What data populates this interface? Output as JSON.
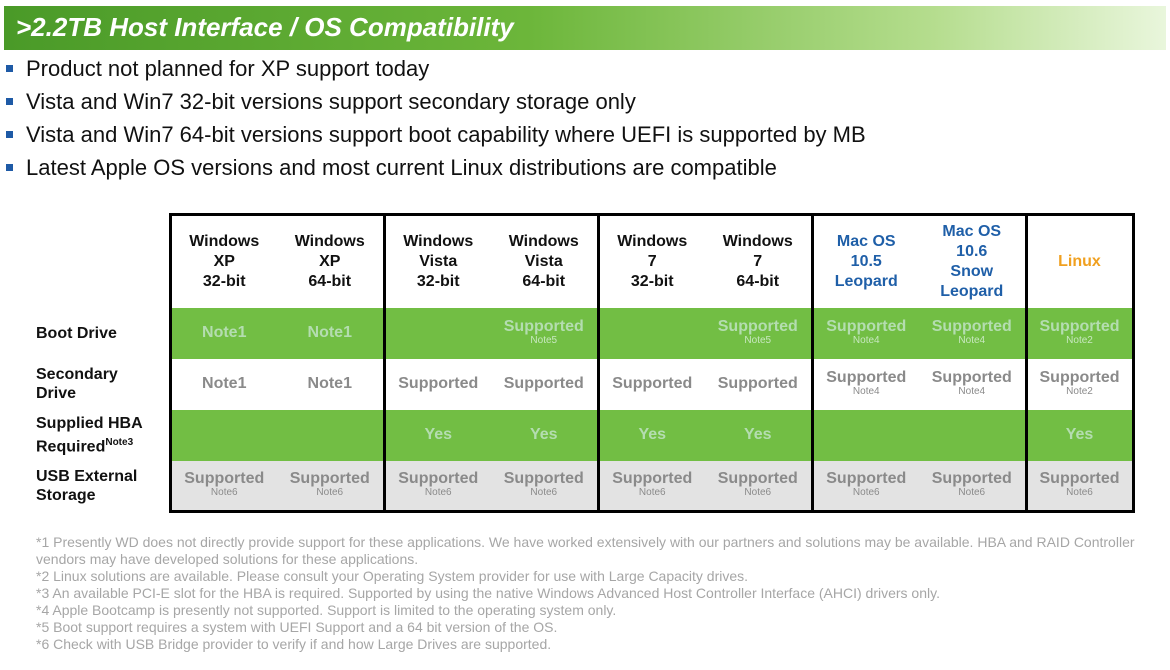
{
  "title": ">2.2TB Host Interface / OS Compatibility",
  "bullets": [
    "Product not planned for XP support today",
    "Vista and Win7 32-bit versions support secondary storage only",
    "Vista and Win7 64-bit versions support boot capability where UEFI is supported by MB",
    "Latest Apple OS versions and most current Linux distributions are compatible"
  ],
  "table": {
    "columns": [
      {
        "l1": "Windows",
        "l2": "XP",
        "l3": "32-bit"
      },
      {
        "l1": "Windows",
        "l2": "XP",
        "l3": "64-bit"
      },
      {
        "l1": "Windows",
        "l2": "Vista",
        "l3": "32-bit"
      },
      {
        "l1": "Windows",
        "l2": "Vista",
        "l3": "64-bit"
      },
      {
        "l1": "Windows",
        "l2": "7",
        "l3": "32-bit"
      },
      {
        "l1": "Windows",
        "l2": "7",
        "l3": "64-bit"
      },
      {
        "l1": "Mac OS",
        "l2": "10.5",
        "l3": "Leopard"
      },
      {
        "l1": "Mac OS",
        "l2": "10.6",
        "l3": "Snow",
        "l4": "Leopard"
      },
      {
        "l1": "Linux"
      }
    ],
    "rows": [
      {
        "label1": "Boot Drive",
        "cells": [
          {
            "v": "Note1"
          },
          {
            "v": "Note1"
          },
          {
            "v": ""
          },
          {
            "v": "Supported",
            "n": "Note5"
          },
          {
            "v": ""
          },
          {
            "v": "Supported",
            "n": "Note5"
          },
          {
            "v": "Supported",
            "n": "Note4"
          },
          {
            "v": "Supported",
            "n": "Note4"
          },
          {
            "v": "Supported",
            "n": "Note2"
          }
        ]
      },
      {
        "label1": "Secondary",
        "label2": "Drive",
        "cells": [
          {
            "v": "Note1"
          },
          {
            "v": "Note1"
          },
          {
            "v": "Supported"
          },
          {
            "v": "Supported"
          },
          {
            "v": "Supported"
          },
          {
            "v": "Supported"
          },
          {
            "v": "Supported",
            "n": "Note4"
          },
          {
            "v": "Supported",
            "n": "Note4"
          },
          {
            "v": "Supported",
            "n": "Note2"
          }
        ]
      },
      {
        "label1": "Supplied HBA",
        "label2": "Required",
        "label_sup": "Note3",
        "cells": [
          {
            "v": ""
          },
          {
            "v": ""
          },
          {
            "v": "Yes"
          },
          {
            "v": "Yes"
          },
          {
            "v": "Yes"
          },
          {
            "v": "Yes"
          },
          {
            "v": ""
          },
          {
            "v": ""
          },
          {
            "v": "Yes"
          }
        ]
      },
      {
        "label1": "USB External",
        "label2": "Storage",
        "cells": [
          {
            "v": "Supported",
            "n": "Note6"
          },
          {
            "v": "Supported",
            "n": "Note6"
          },
          {
            "v": "Supported",
            "n": "Note6"
          },
          {
            "v": "Supported",
            "n": "Note6"
          },
          {
            "v": "Supported",
            "n": "Note6"
          },
          {
            "v": "Supported",
            "n": "Note6"
          },
          {
            "v": "Supported",
            "n": "Note6"
          },
          {
            "v": "Supported",
            "n": "Note6"
          },
          {
            "v": "Supported",
            "n": "Note6"
          }
        ]
      }
    ]
  },
  "footnotes": [
    "*1  Presently WD does not directly provide support for these applications.  We have worked extensively with our partners and solutions may be available.  HBA and RAID Controller vendors may have developed solutions for these applications.",
    "*2  Linux solutions are available.  Please consult your Operating System provider for use with Large Capacity drives.",
    "*3  An available PCI-E slot for the HBA is required.  Supported by using the native Windows Advanced Host Controller Interface (AHCI) drivers only.",
    "*4  Apple Bootcamp is presently not supported.  Support is limited to the operating system only.",
    "*5  Boot support requires a system with UEFI Support and a 64 bit version of the OS.",
    "*6  Check with USB Bridge provider to verify if and how Large Drives are supported."
  ],
  "colors": {
    "title_green": "#4a9a28",
    "row_green": "#72be44",
    "row_gray": "#e3e3e3",
    "mac_blue": "#1f5fa8",
    "linux_orange": "#f0a020",
    "bullet_blue": "#1e5aa6"
  }
}
